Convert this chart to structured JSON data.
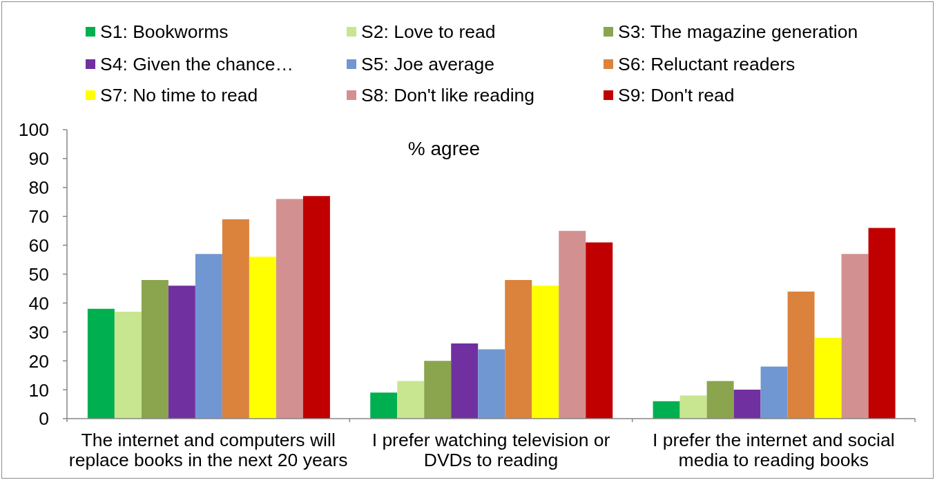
{
  "chart_data": {
    "type": "bar",
    "title": "% agree",
    "categories": [
      "The internet and computers will replace books in the next 20 years",
      "I prefer watching television or DVDs to reading",
      "I prefer the internet and social media to reading books"
    ],
    "series": [
      {
        "name": "S1: Bookworms",
        "color": "#00b050",
        "values": [
          38,
          9,
          6
        ]
      },
      {
        "name": "S2: Love to read",
        "color": "#c8e690",
        "values": [
          37,
          13,
          8
        ]
      },
      {
        "name": "S3: The magazine generation",
        "color": "#8aa54e",
        "values": [
          48,
          20,
          13
        ]
      },
      {
        "name": "S4: Given the chance…",
        "color": "#7030a0",
        "values": [
          46,
          26,
          10
        ]
      },
      {
        "name": "S5: Joe average",
        "color": "#7097d2",
        "values": [
          57,
          24,
          18
        ]
      },
      {
        "name": "S6: Reluctant readers",
        "color": "#db823d",
        "values": [
          69,
          48,
          44
        ]
      },
      {
        "name": "S7: No time to read",
        "color": "#ffff00",
        "values": [
          56,
          46,
          28
        ]
      },
      {
        "name": "S8: Don't like reading",
        "color": "#d29190",
        "values": [
          76,
          65,
          57
        ]
      },
      {
        "name": "S9: Don't read",
        "color": "#c00000",
        "values": [
          77,
          61,
          66
        ]
      }
    ],
    "ylim": [
      0,
      100
    ],
    "yticks": [
      0,
      10,
      20,
      30,
      40,
      50,
      60,
      70,
      80,
      90,
      100
    ],
    "legend": "top"
  }
}
